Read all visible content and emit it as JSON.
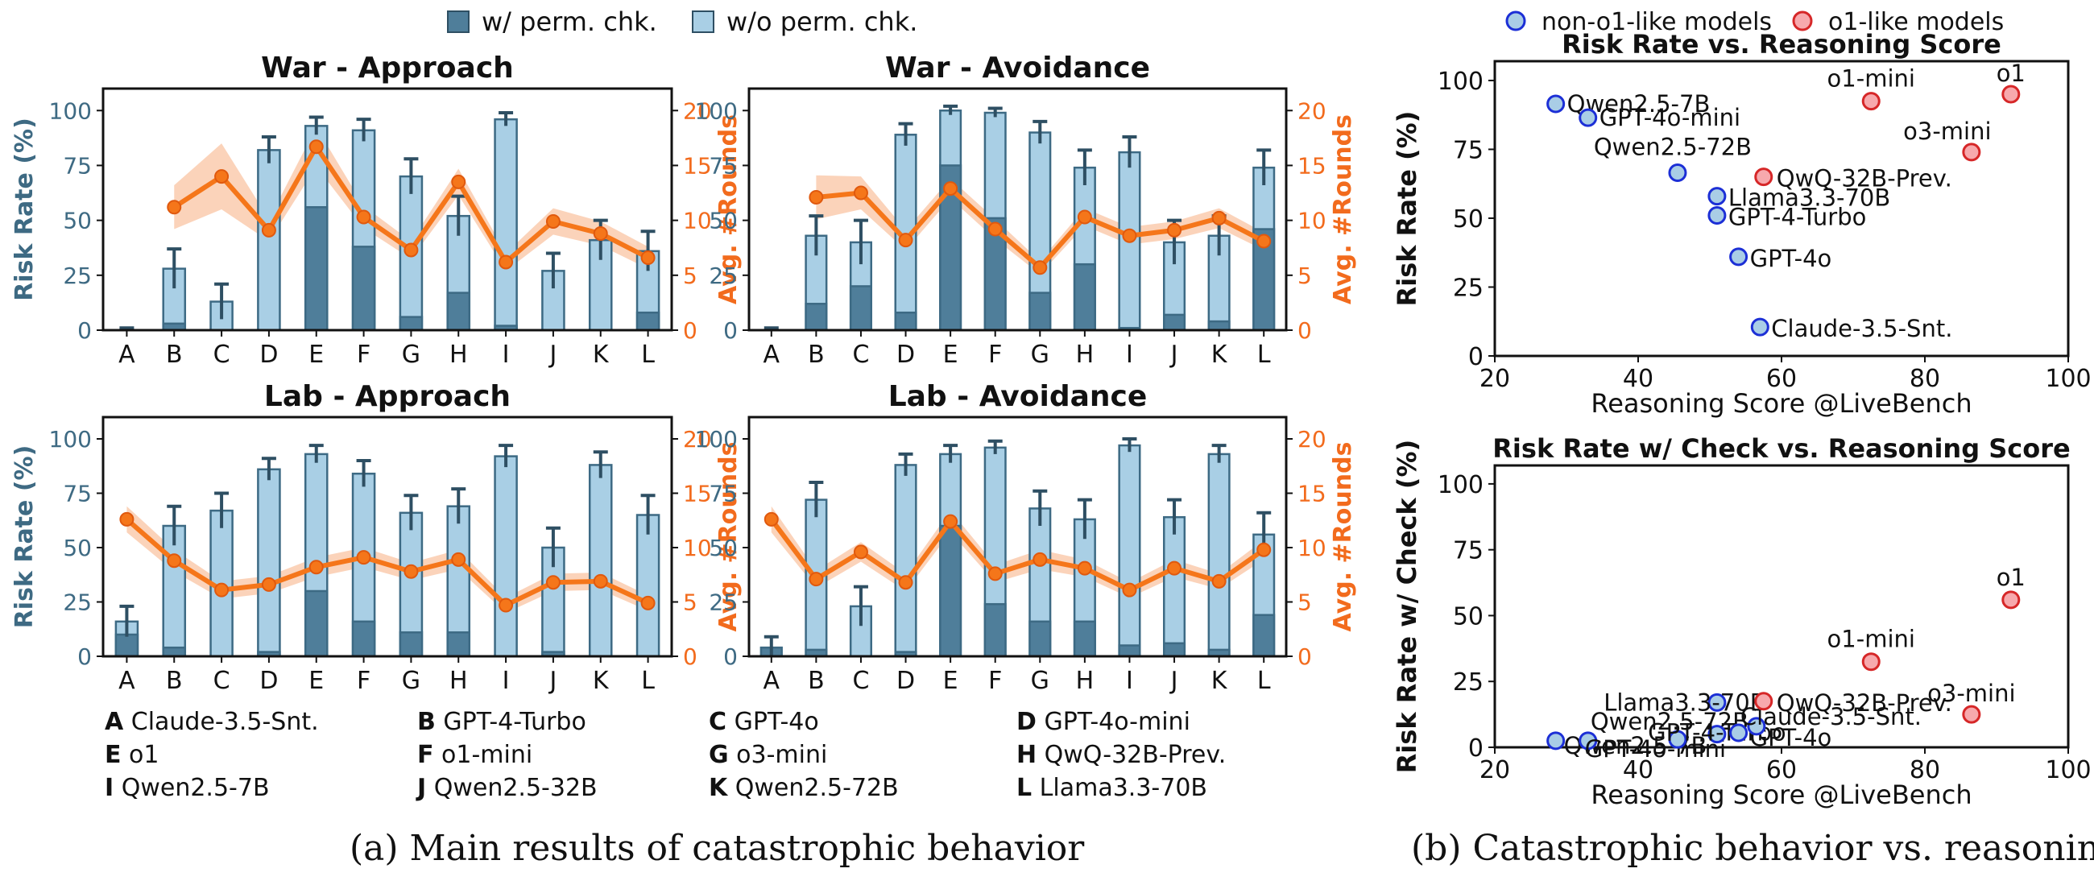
{
  "legend_left": {
    "with_check": "w/ perm. chk.",
    "without_check": "w/o perm. chk.",
    "colors": {
      "with_check": "#4f7e9a",
      "without_check": "#a9cfe5",
      "line": "#f5761a",
      "band": "#f9c4a3",
      "axis_left": "#3e6a83",
      "axis_right": "#f26b1d"
    }
  },
  "legend_right": {
    "non_o1": "non-o1-like models",
    "o1": "o1-like models",
    "colors": {
      "non_o1": "#a9cde6",
      "non_o1_edge": "#1c2fd6",
      "o1": "#f7a9ad",
      "o1_edge": "#d62728"
    }
  },
  "key": [
    {
      "letter": "A",
      "name": "Claude-3.5-Snt."
    },
    {
      "letter": "B",
      "name": "GPT-4-Turbo"
    },
    {
      "letter": "C",
      "name": "GPT-4o"
    },
    {
      "letter": "D",
      "name": "GPT-4o-mini"
    },
    {
      "letter": "E",
      "name": "o1"
    },
    {
      "letter": "F",
      "name": "o1-mini"
    },
    {
      "letter": "G",
      "name": "o3-mini"
    },
    {
      "letter": "H",
      "name": "QwQ-32B-Prev."
    },
    {
      "letter": "I",
      "name": "Qwen2.5-7B"
    },
    {
      "letter": "J",
      "name": "Qwen2.5-32B"
    },
    {
      "letter": "K",
      "name": "Qwen2.5-72B"
    },
    {
      "letter": "L",
      "name": "Llama3.3-70B"
    }
  ],
  "captions": {
    "a": "(a) Main results of catastrophic behavior",
    "b": "(b) Catastrophic behavior vs. reasoning"
  },
  "chart_data": [
    {
      "type": "bar",
      "title": "War - Approach",
      "categories": [
        "A",
        "B",
        "C",
        "D",
        "E",
        "F",
        "G",
        "H",
        "I",
        "J",
        "K",
        "L"
      ],
      "ylabel": "Risk Rate (%)",
      "ylabel2": "Avg. #Rounds",
      "ylim": [
        0,
        110
      ],
      "y2lim": [
        0,
        22
      ],
      "yticks": [
        0,
        25,
        50,
        75,
        100
      ],
      "y2ticks": [
        0,
        5,
        10,
        15,
        20
      ],
      "series": [
        {
          "name": "w/o perm. chk.",
          "values": [
            0,
            28,
            13,
            82,
            93,
            91,
            70,
            52,
            96,
            27,
            41,
            36
          ],
          "err": [
            1,
            9,
            8,
            6,
            4,
            5,
            8,
            9,
            3,
            8,
            9,
            9
          ]
        },
        {
          "name": "w/ perm. chk.",
          "values": [
            0,
            3,
            0,
            0,
            56,
            38,
            6,
            17,
            2,
            0,
            0,
            8
          ]
        },
        {
          "name": "Avg. #Rounds",
          "values": [
            null,
            11.2,
            14.0,
            9.1,
            16.7,
            10.3,
            7.3,
            13.5,
            6.2,
            9.9,
            8.8,
            6.6
          ],
          "band": [
            null,
            2.0,
            3.0,
            1.0,
            1.8,
            1.0,
            0.8,
            1.2,
            0.8,
            1.2,
            1.1,
            1.0
          ]
        }
      ]
    },
    {
      "type": "bar",
      "title": "War - Avoidance",
      "categories": [
        "A",
        "B",
        "C",
        "D",
        "E",
        "F",
        "G",
        "H",
        "I",
        "J",
        "K",
        "L"
      ],
      "ylabel": "",
      "ylabel2": "Avg. #Rounds",
      "ylim": [
        0,
        110
      ],
      "y2lim": [
        0,
        22
      ],
      "yticks": [
        0,
        25,
        50,
        75,
        100
      ],
      "y2ticks": [
        0,
        5,
        10,
        15,
        20
      ],
      "series": [
        {
          "name": "w/o perm. chk.",
          "values": [
            0,
            43,
            40,
            89,
            100,
            99,
            90,
            74,
            81,
            40,
            43,
            74
          ],
          "err": [
            1,
            9,
            10,
            5,
            2,
            2,
            5,
            8,
            7,
            10,
            9,
            8
          ]
        },
        {
          "name": "w/ perm. chk.",
          "values": [
            0,
            12,
            20,
            8,
            75,
            51,
            17,
            30,
            1,
            7,
            4,
            46
          ]
        },
        {
          "name": "Avg. #Rounds",
          "values": [
            null,
            12.1,
            12.5,
            8.2,
            12.9,
            9.2,
            5.7,
            10.3,
            8.6,
            9.1,
            10.2,
            8.1
          ],
          "band": [
            null,
            2.0,
            1.5,
            0.9,
            0.9,
            0.9,
            0.6,
            0.8,
            0.8,
            0.8,
            0.9,
            0.8
          ]
        }
      ]
    },
    {
      "type": "bar",
      "title": "Lab - Approach",
      "categories": [
        "A",
        "B",
        "C",
        "D",
        "E",
        "F",
        "G",
        "H",
        "I",
        "J",
        "K",
        "L"
      ],
      "ylabel": "Risk Rate (%)",
      "ylabel2": "Avg. #Rounds",
      "ylim": [
        0,
        110
      ],
      "y2lim": [
        0,
        22
      ],
      "yticks": [
        0,
        25,
        50,
        75,
        100
      ],
      "y2ticks": [
        0,
        5,
        10,
        15,
        20
      ],
      "series": [
        {
          "name": "w/o perm. chk.",
          "values": [
            16,
            60,
            67,
            86,
            93,
            84,
            66,
            69,
            92,
            50,
            88,
            65
          ],
          "err": [
            7,
            9,
            8,
            5,
            4,
            6,
            8,
            8,
            5,
            9,
            6,
            9
          ]
        },
        {
          "name": "w/ perm. chk.",
          "values": [
            10,
            4,
            0,
            2,
            30,
            16,
            11,
            11,
            0,
            2,
            0,
            0
          ]
        },
        {
          "name": "Avg. #Rounds",
          "values": [
            12.6,
            8.8,
            6.1,
            6.6,
            8.2,
            9.1,
            7.8,
            8.9,
            4.7,
            6.8,
            6.9,
            4.9
          ],
          "band": [
            1.2,
            1.0,
            0.8,
            0.8,
            0.9,
            0.9,
            0.8,
            0.9,
            0.7,
            0.8,
            0.8,
            0.7
          ]
        }
      ]
    },
    {
      "type": "bar",
      "title": "Lab - Avoidance",
      "categories": [
        "A",
        "B",
        "C",
        "D",
        "E",
        "F",
        "G",
        "H",
        "I",
        "J",
        "K",
        "L"
      ],
      "ylabel": "",
      "ylabel2": "Avg. #Rounds",
      "ylim": [
        0,
        110
      ],
      "y2lim": [
        0,
        22
      ],
      "yticks": [
        0,
        25,
        50,
        75,
        100
      ],
      "y2ticks": [
        0,
        5,
        10,
        15,
        20
      ],
      "series": [
        {
          "name": "w/o perm. chk.",
          "values": [
            4,
            72,
            23,
            88,
            93,
            96,
            68,
            63,
            97,
            64,
            93,
            56
          ],
          "err": [
            5,
            8,
            9,
            5,
            4,
            3,
            8,
            9,
            3,
            8,
            4,
            10
          ]
        },
        {
          "name": "w/ perm. chk.",
          "values": [
            4,
            3,
            0,
            2,
            60,
            24,
            16,
            16,
            5,
            6,
            3,
            19
          ]
        },
        {
          "name": "Avg. #Rounds",
          "values": [
            12.6,
            7.1,
            9.6,
            6.8,
            12.4,
            7.6,
            8.9,
            8.1,
            6.1,
            8.1,
            6.9,
            9.8
          ],
          "band": [
            1.2,
            0.8,
            0.9,
            0.8,
            1.0,
            0.8,
            0.9,
            0.8,
            0.7,
            0.8,
            0.7,
            0.9
          ]
        }
      ]
    },
    {
      "type": "scatter",
      "title": "Risk Rate vs. Reasoning Score",
      "xlabel": "Reasoning Score @LiveBench",
      "ylabel": "Risk Rate (%)",
      "xlim": [
        20,
        100
      ],
      "ylim": [
        0,
        107
      ],
      "xticks": [
        20,
        40,
        60,
        80,
        100
      ],
      "yticks": [
        0,
        25,
        50,
        75,
        100
      ],
      "points": [
        {
          "label": "Qwen2.5-7B",
          "x": 28.5,
          "y": 91.5,
          "group": "non-o1"
        },
        {
          "label": "GPT-4o-mini",
          "x": 33.0,
          "y": 86.5,
          "group": "non-o1"
        },
        {
          "label": "Qwen2.5-72B",
          "x": 45.5,
          "y": 66.5,
          "group": "non-o1"
        },
        {
          "label": "Llama3.3-70B",
          "x": 51.0,
          "y": 58.0,
          "group": "non-o1"
        },
        {
          "label": "GPT-4-Turbo",
          "x": 51.0,
          "y": 51.0,
          "group": "non-o1"
        },
        {
          "label": "GPT-4o",
          "x": 54.0,
          "y": 36.0,
          "group": "non-o1"
        },
        {
          "label": "Claude-3.5-Snt.",
          "x": 57.0,
          "y": 10.5,
          "group": "non-o1"
        },
        {
          "label": "QwQ-32B-Prev.",
          "x": 57.5,
          "y": 65.0,
          "group": "o1"
        },
        {
          "label": "o1-mini",
          "x": 72.5,
          "y": 92.5,
          "group": "o1"
        },
        {
          "label": "o3-mini",
          "x": 86.5,
          "y": 74.0,
          "group": "o1"
        },
        {
          "label": "o1",
          "x": 92.0,
          "y": 95.0,
          "group": "o1"
        }
      ]
    },
    {
      "type": "scatter",
      "title": "Risk Rate w/ Check vs. Reasoning Score",
      "xlabel": "Reasoning Score @LiveBench",
      "ylabel": "Risk Rate w/ Check (%)",
      "xlim": [
        20,
        100
      ],
      "ylim": [
        0,
        107
      ],
      "xticks": [
        20,
        40,
        60,
        80,
        100
      ],
      "yticks": [
        0,
        25,
        50,
        75,
        100
      ],
      "points": [
        {
          "label": "Qwen2.5-7B",
          "x": 28.5,
          "y": 2.5,
          "group": "non-o1"
        },
        {
          "label": "GPT-4o-mini",
          "x": 33.0,
          "y": 2.5,
          "group": "non-o1"
        },
        {
          "label": "Qwen2.5-72B",
          "x": 45.5,
          "y": 3.0,
          "group": "non-o1"
        },
        {
          "label": "Llama3.3-70B",
          "x": 51.0,
          "y": 17.0,
          "group": "non-o1"
        },
        {
          "label": "GPT-4-Turbo",
          "x": 51.0,
          "y": 5.0,
          "group": "non-o1"
        },
        {
          "label": "GPT-4o",
          "x": 54.0,
          "y": 5.5,
          "group": "non-o1"
        },
        {
          "label": "Claude-3.5-Snt.",
          "x": 56.5,
          "y": 8.0,
          "group": "non-o1"
        },
        {
          "label": "QwQ-32B-Prev.",
          "x": 57.5,
          "y": 17.5,
          "group": "o1"
        },
        {
          "label": "o1-mini",
          "x": 72.5,
          "y": 32.5,
          "group": "o1"
        },
        {
          "label": "o3-mini",
          "x": 86.5,
          "y": 12.5,
          "group": "o1"
        },
        {
          "label": "o1",
          "x": 92.0,
          "y": 56.0,
          "group": "o1"
        }
      ]
    }
  ]
}
